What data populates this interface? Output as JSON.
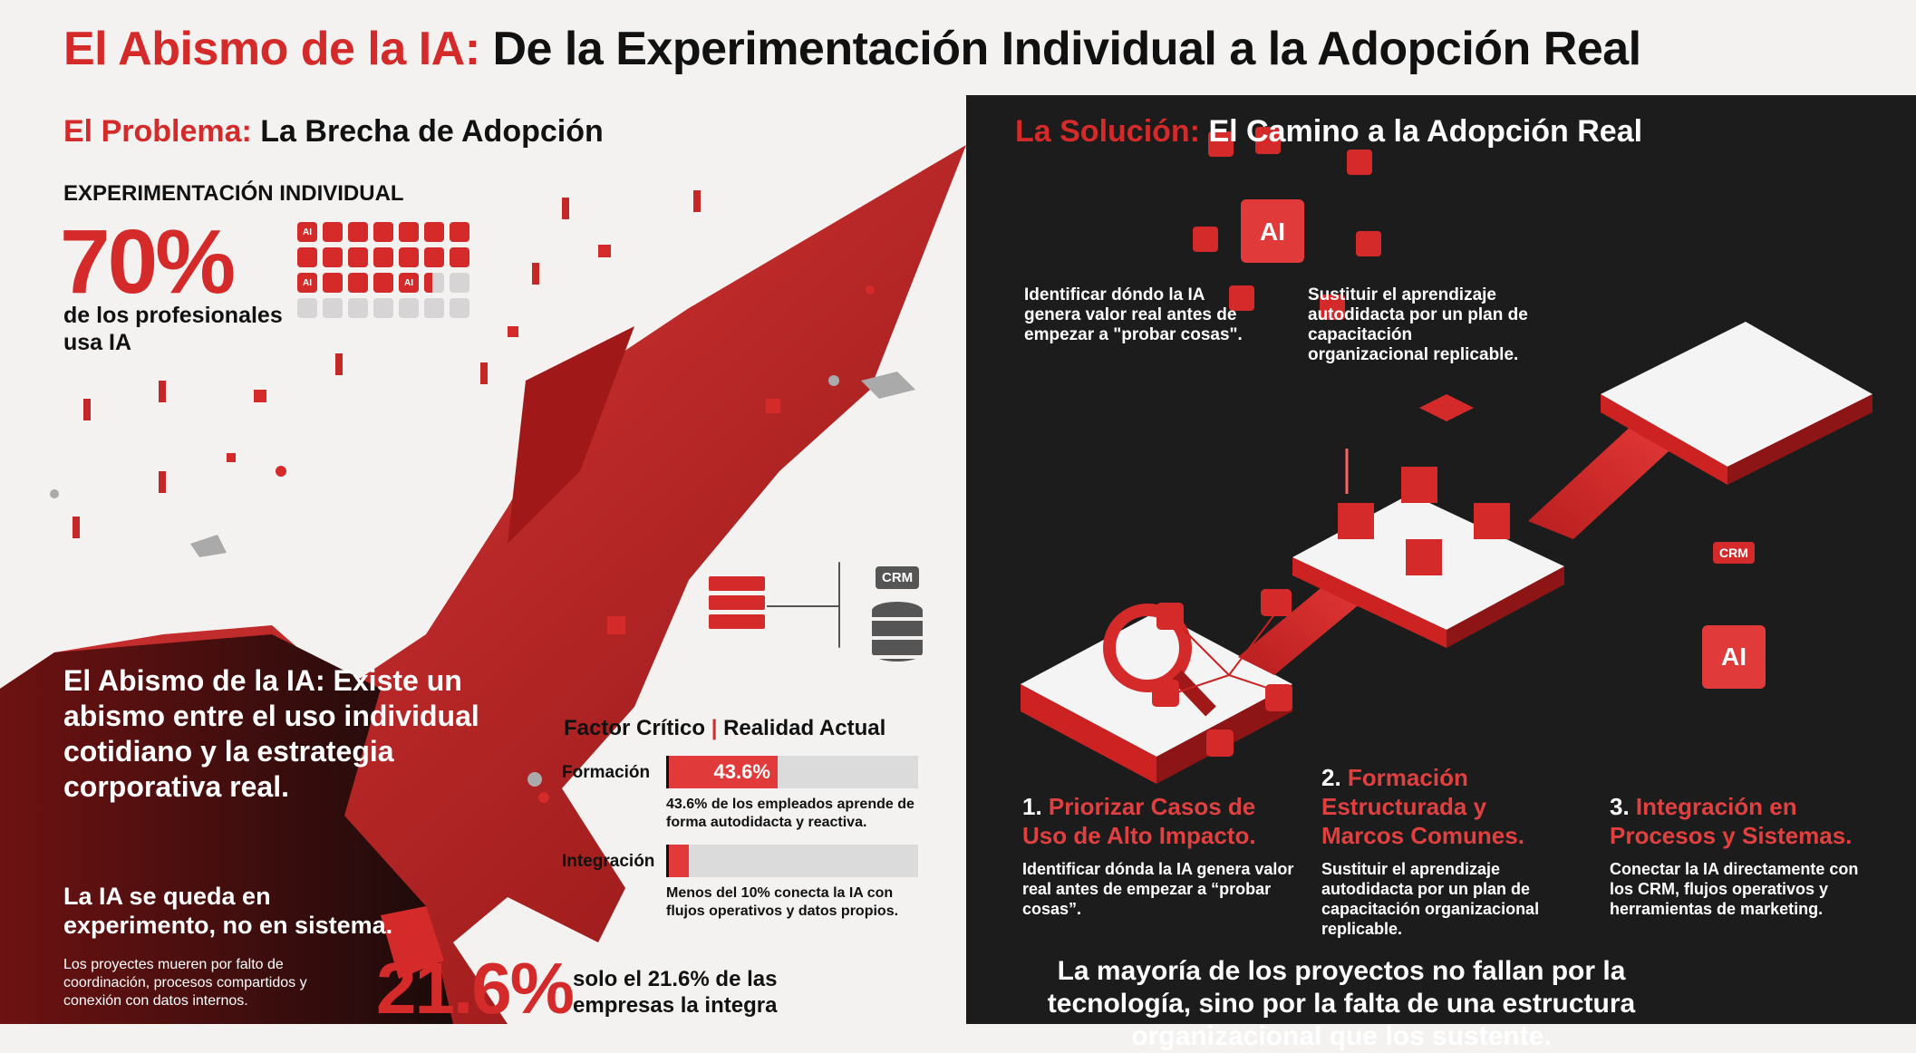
{
  "title": {
    "highlight": "El Abismo de la IA:",
    "rest": " De la Experimentación Individual a la Adopción Real"
  },
  "problem": {
    "heading_highlight": "El Problema:",
    "heading_rest": " La Brecha de Adopción",
    "experimentation_label": "EXPERIMENTACIÓN INDIVIDUAL",
    "stat": "70%",
    "stat_text": "de los profesionales usa IA",
    "icon_grid": {
      "total": 28,
      "filled": 19.4,
      "ai_label": "AI"
    },
    "abyss_text": "El Abismo de la IA: Existe un abismo entre el uso individual cotidiano y la estrategia corporativa real.",
    "experiment_text": "La IA se queda en experimento, no en sistema.",
    "projects_text": "Los proyectes mueren por falto de coordinación, procesos compartidos y conexión con datos internos.",
    "integration_stat": "21.6%",
    "integration_text": "solo el 21.6% de las empresas la integra",
    "crm_label": "CRM",
    "factors": {
      "title_left": "Factor Crítico",
      "separator": "|",
      "title_right": "Realidad Actual",
      "rows": [
        {
          "label": "Formación",
          "value_label": "43.6%",
          "percent": 43.6,
          "caption": "43.6% de los empleados aprende de forma autodidacta y reactiva."
        },
        {
          "label": "Integración",
          "value_label": "",
          "percent": 8,
          "caption": "Menos del 10% conecta la IA con flujos operativos y datos propios."
        }
      ]
    }
  },
  "solution": {
    "heading_highlight": "La Solución:",
    "heading_rest": " El Camino a la Adopción Real",
    "callout_1": "Identificar dóndo la IA genera valor real antes de empezar a \"probar cosas\".",
    "callout_2": "Sustituir el aprendizaje autodidacta por un plan de capacitación organizacional replicable.",
    "ai_chip": "AI",
    "crm_label": "CRM",
    "steps": [
      {
        "number": "1.",
        "title": "Priorizar Casos de Uso de Alto Impacto.",
        "desc": "Identificar dónda la IA genera valor real antes de empezar a “probar cosas”."
      },
      {
        "number": "2.",
        "title": "Formación Estructurada y Marcos Comunes.",
        "desc": "Sustituir el aprendizaje autodidacta por un plan de capacitación organizacional replicable."
      },
      {
        "number": "3.",
        "title": "Integración en Procesos y Sistemas.",
        "desc": "Conectar la IA directamente con los CRM, flujos operativos y herramientas de marketing."
      }
    ],
    "closing": "La mayoría de los proyectos no fallan por la tecnología, sino por la falta de una estructura organizacional que los sustente."
  },
  "colors": {
    "accent": "#d42a2a",
    "dark": "#1d1c1c",
    "light": "#f3f2f1"
  }
}
